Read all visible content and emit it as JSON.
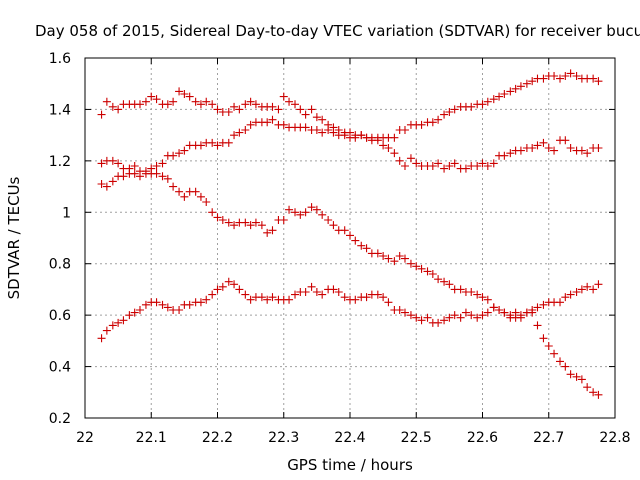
{
  "chart_data": {
    "type": "scatter",
    "title": "Day 058 of 2015, Sidereal Day-to-day VTEC variation (SDTVAR) for receiver bucu",
    "xlabel": "GPS time / hours",
    "ylabel": "SDTVAR / TECUs",
    "xlim": [
      22.0,
      22.8
    ],
    "ylim": [
      0.2,
      1.6
    ],
    "xticks": [
      22.0,
      22.1,
      22.2,
      22.3,
      22.4,
      22.5,
      22.6,
      22.7,
      22.8
    ],
    "xtick_labels": [
      "22",
      "22.1",
      "22.2",
      "22.3",
      "22.4",
      "22.5",
      "22.6",
      "22.7",
      "22.8"
    ],
    "yticks": [
      0.2,
      0.4,
      0.6,
      0.8,
      1.0,
      1.2,
      1.4,
      1.6
    ],
    "ytick_labels": [
      "0.2",
      "0.4",
      "0.6",
      "0.8",
      "1",
      "1.2",
      "1.4",
      "1.6"
    ],
    "grid": true,
    "marker": "+",
    "color": "#cc0000",
    "series": [
      {
        "name": "series-1",
        "x": [
          22.025,
          22.033,
          22.042,
          22.05,
          22.058,
          22.067,
          22.075,
          22.083,
          22.092,
          22.1,
          22.108,
          22.117,
          22.125,
          22.133,
          22.142,
          22.15,
          22.158,
          22.167,
          22.175,
          22.183,
          22.192,
          22.2,
          22.208,
          22.217,
          22.225,
          22.233,
          22.242,
          22.25,
          22.258,
          22.267,
          22.275,
          22.283,
          22.292,
          22.3,
          22.308,
          22.317,
          22.325,
          22.333,
          22.342,
          22.35,
          22.358,
          22.367,
          22.375,
          22.383,
          22.392,
          22.4,
          22.408,
          22.417,
          22.425,
          22.433,
          22.442,
          22.45,
          22.458,
          22.467,
          22.475,
          22.483,
          22.492,
          22.5,
          22.508,
          22.517,
          22.525,
          22.533,
          22.542,
          22.55,
          22.558,
          22.567,
          22.575,
          22.583,
          22.592,
          22.6,
          22.608,
          22.617,
          22.625,
          22.633,
          22.642,
          22.65,
          22.658,
          22.667,
          22.675,
          22.683,
          22.692,
          22.7,
          22.708,
          22.717,
          22.725,
          22.733,
          22.742,
          22.75,
          22.758,
          22.767,
          22.775
        ],
        "y": [
          1.38,
          1.43,
          1.41,
          1.4,
          1.42,
          1.42,
          1.42,
          1.42,
          1.43,
          1.45,
          1.44,
          1.42,
          1.42,
          1.43,
          1.47,
          1.46,
          1.45,
          1.43,
          1.42,
          1.43,
          1.42,
          1.4,
          1.39,
          1.39,
          1.41,
          1.4,
          1.42,
          1.43,
          1.42,
          1.41,
          1.41,
          1.41,
          1.4,
          1.45,
          1.43,
          1.42,
          1.4,
          1.38,
          1.4,
          1.37,
          1.36,
          1.34,
          1.33,
          1.32,
          1.3,
          1.29,
          1.29,
          1.3,
          1.29,
          1.29,
          1.29,
          1.29,
          1.29,
          1.29,
          1.32,
          1.32,
          1.34,
          1.34,
          1.34,
          1.35,
          1.35,
          1.36,
          1.38,
          1.39,
          1.4,
          1.41,
          1.41,
          1.41,
          1.42,
          1.42,
          1.43,
          1.44,
          1.45,
          1.46,
          1.47,
          1.48,
          1.49,
          1.5,
          1.51,
          1.52,
          1.52,
          1.53,
          1.53,
          1.52,
          1.53,
          1.54,
          1.53,
          1.52,
          1.52,
          1.52,
          1.51
        ]
      },
      {
        "name": "series-2",
        "x": [
          22.025,
          22.033,
          22.042,
          22.05,
          22.058,
          22.067,
          22.075,
          22.083,
          22.092,
          22.1,
          22.108,
          22.117,
          22.125,
          22.133,
          22.142,
          22.15,
          22.158,
          22.167,
          22.175,
          22.183,
          22.192,
          22.2,
          22.208,
          22.217,
          22.225,
          22.233,
          22.242,
          22.25,
          22.258,
          22.267,
          22.275,
          22.283,
          22.292,
          22.3,
          22.308,
          22.317,
          22.325,
          22.333,
          22.342,
          22.35,
          22.358,
          22.367,
          22.375,
          22.383,
          22.392,
          22.4,
          22.408,
          22.417,
          22.425,
          22.433,
          22.442,
          22.45,
          22.458,
          22.467,
          22.475,
          22.483,
          22.492,
          22.5,
          22.508,
          22.517,
          22.525,
          22.533,
          22.542,
          22.55,
          22.558,
          22.567,
          22.575,
          22.583,
          22.592,
          22.6,
          22.608,
          22.617,
          22.625,
          22.633,
          22.642,
          22.65,
          22.658,
          22.667,
          22.675,
          22.683,
          22.692,
          22.7,
          22.708,
          22.717,
          22.725,
          22.733,
          22.742,
          22.75,
          22.758,
          22.767,
          22.775
        ],
        "y": [
          1.11,
          1.1,
          1.12,
          1.14,
          1.14,
          1.15,
          1.15,
          1.14,
          1.15,
          1.17,
          1.18,
          1.19,
          1.22,
          1.22,
          1.23,
          1.24,
          1.26,
          1.26,
          1.26,
          1.27,
          1.27,
          1.26,
          1.27,
          1.27,
          1.3,
          1.31,
          1.32,
          1.34,
          1.35,
          1.35,
          1.35,
          1.36,
          1.34,
          1.34,
          1.33,
          1.33,
          1.33,
          1.33,
          1.32,
          1.32,
          1.31,
          1.32,
          1.31,
          1.3,
          1.31,
          1.31,
          1.3,
          1.3,
          1.29,
          1.28,
          1.28,
          1.26,
          1.25,
          1.23,
          1.2,
          1.18,
          1.21,
          1.19,
          1.18,
          1.18,
          1.18,
          1.19,
          1.17,
          1.18,
          1.19,
          1.17,
          1.17,
          1.18,
          1.18,
          1.19,
          1.18,
          1.19,
          1.22,
          1.22,
          1.23,
          1.24,
          1.24,
          1.25,
          1.25,
          1.26,
          1.27,
          1.25,
          1.24,
          1.28,
          1.28,
          1.25,
          1.24,
          1.24,
          1.23,
          1.25,
          1.25
        ]
      },
      {
        "name": "series-3",
        "x": [
          22.025,
          22.033,
          22.042,
          22.05,
          22.058,
          22.067,
          22.075,
          22.083,
          22.092,
          22.1,
          22.108,
          22.117,
          22.125,
          22.133,
          22.142,
          22.15,
          22.158,
          22.167,
          22.175,
          22.183,
          22.192,
          22.2,
          22.208,
          22.217,
          22.225,
          22.233,
          22.242,
          22.25,
          22.258,
          22.267,
          22.275,
          22.283,
          22.292,
          22.3,
          22.308,
          22.317,
          22.325,
          22.333,
          22.342,
          22.35,
          22.358,
          22.367,
          22.375,
          22.383,
          22.392,
          22.4,
          22.408,
          22.417,
          22.425,
          22.433,
          22.442,
          22.45,
          22.458,
          22.467,
          22.475,
          22.483,
          22.492,
          22.5,
          22.508,
          22.517,
          22.525,
          22.533,
          22.542,
          22.55,
          22.558,
          22.567,
          22.575,
          22.583,
          22.592,
          22.6,
          22.608,
          22.617,
          22.625,
          22.633,
          22.642,
          22.65,
          22.658,
          22.667,
          22.675,
          22.683,
          22.692,
          22.7,
          22.708,
          22.717,
          22.725,
          22.733,
          22.742,
          22.75,
          22.758,
          22.767,
          22.775
        ],
        "y": [
          1.19,
          1.2,
          1.2,
          1.19,
          1.17,
          1.17,
          1.18,
          1.16,
          1.16,
          1.15,
          1.15,
          1.14,
          1.13,
          1.1,
          1.08,
          1.06,
          1.08,
          1.08,
          1.06,
          1.04,
          1.0,
          0.98,
          0.97,
          0.96,
          0.95,
          0.96,
          0.96,
          0.95,
          0.96,
          0.95,
          0.92,
          0.93,
          0.97,
          0.97,
          1.01,
          1.0,
          0.99,
          1.0,
          1.02,
          1.01,
          0.99,
          0.97,
          0.95,
          0.93,
          0.93,
          0.91,
          0.89,
          0.87,
          0.86,
          0.84,
          0.84,
          0.83,
          0.82,
          0.81,
          0.83,
          0.82,
          0.8,
          0.79,
          0.78,
          0.77,
          0.76,
          0.74,
          0.73,
          0.72,
          0.7,
          0.7,
          0.69,
          0.69,
          0.68,
          0.67,
          0.66,
          0.63,
          0.62,
          0.61,
          0.59,
          0.59,
          0.59,
          0.61,
          0.61,
          0.56,
          0.51,
          0.48,
          0.45,
          0.42,
          0.4,
          0.37,
          0.36,
          0.35,
          0.32,
          0.3,
          0.29
        ]
      },
      {
        "name": "series-4",
        "x": [
          22.025,
          22.033,
          22.042,
          22.05,
          22.058,
          22.067,
          22.075,
          22.083,
          22.092,
          22.1,
          22.108,
          22.117,
          22.125,
          22.133,
          22.142,
          22.15,
          22.158,
          22.167,
          22.175,
          22.183,
          22.192,
          22.2,
          22.208,
          22.217,
          22.225,
          22.233,
          22.242,
          22.25,
          22.258,
          22.267,
          22.275,
          22.283,
          22.292,
          22.3,
          22.308,
          22.317,
          22.325,
          22.333,
          22.342,
          22.35,
          22.358,
          22.367,
          22.375,
          22.383,
          22.392,
          22.4,
          22.408,
          22.417,
          22.425,
          22.433,
          22.442,
          22.45,
          22.458,
          22.467,
          22.475,
          22.483,
          22.492,
          22.5,
          22.508,
          22.517,
          22.525,
          22.533,
          22.542,
          22.55,
          22.558,
          22.567,
          22.575,
          22.583,
          22.592,
          22.6,
          22.608,
          22.617,
          22.625,
          22.633,
          22.642,
          22.65,
          22.658,
          22.667,
          22.675,
          22.683,
          22.692,
          22.7,
          22.708,
          22.717,
          22.725,
          22.733,
          22.742,
          22.75,
          22.758,
          22.767,
          22.775
        ],
        "y": [
          0.51,
          0.54,
          0.56,
          0.57,
          0.58,
          0.6,
          0.61,
          0.62,
          0.64,
          0.65,
          0.65,
          0.64,
          0.63,
          0.62,
          0.62,
          0.64,
          0.64,
          0.65,
          0.65,
          0.66,
          0.68,
          0.7,
          0.71,
          0.73,
          0.72,
          0.7,
          0.68,
          0.66,
          0.67,
          0.67,
          0.66,
          0.67,
          0.66,
          0.66,
          0.66,
          0.68,
          0.69,
          0.69,
          0.71,
          0.69,
          0.68,
          0.7,
          0.7,
          0.69,
          0.67,
          0.66,
          0.66,
          0.67,
          0.67,
          0.68,
          0.68,
          0.67,
          0.65,
          0.62,
          0.62,
          0.61,
          0.6,
          0.59,
          0.58,
          0.59,
          0.57,
          0.57,
          0.58,
          0.59,
          0.6,
          0.59,
          0.61,
          0.6,
          0.59,
          0.6,
          0.61,
          0.63,
          0.62,
          0.61,
          0.6,
          0.61,
          0.6,
          0.61,
          0.62,
          0.63,
          0.64,
          0.65,
          0.65,
          0.65,
          0.67,
          0.68,
          0.69,
          0.7,
          0.71,
          0.7,
          0.72
        ]
      }
    ]
  }
}
